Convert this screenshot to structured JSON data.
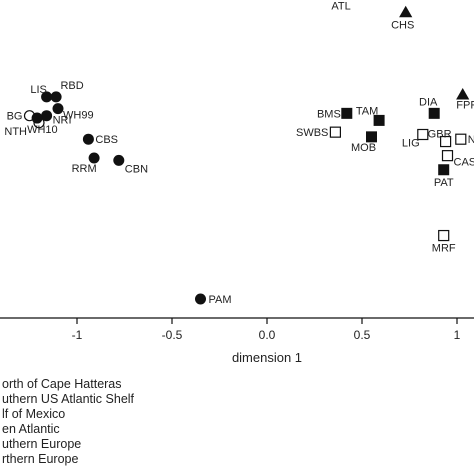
{
  "chart_data": {
    "type": "scatter",
    "xlabel": "dimension 1",
    "ylabel": "",
    "xlim": [
      -1.45,
      1.15
    ],
    "ylim": [
      -0.78,
      0.38
    ],
    "x_ticks": [
      -1,
      -0.5,
      0.0,
      0.5,
      1
    ],
    "x_tick_labels": [
      "-1",
      "-0.5",
      "0.0",
      "0.5",
      "1"
    ],
    "grid": false,
    "legend_position": "bottom-left",
    "legend": [
      {
        "symbol": "triangle",
        "label": "orth of Cape Hatteras"
      },
      {
        "symbol": "square-filled",
        "label": "uthern US Atlantic Shelf"
      },
      {
        "symbol": "square-open",
        "label": "lf of Mexico"
      },
      {
        "symbol": "diamond",
        "label": "en Atlantic"
      },
      {
        "symbol": "circle-open",
        "label": "uthern Europe"
      },
      {
        "symbol": "circle-filled",
        "label": "rthern Europe"
      }
    ],
    "points": [
      {
        "label": "ATL",
        "x": 0.39,
        "y": 0.35,
        "marker": "diamond"
      },
      {
        "label": "CHS",
        "x": 0.73,
        "y": 0.31,
        "marker": "triangle"
      },
      {
        "label": "FPF",
        "x": 1.03,
        "y": 0.135,
        "marker": "triangle"
      },
      {
        "label": "BMS",
        "x": 0.42,
        "y": 0.095,
        "marker": "square-filled"
      },
      {
        "label": "TAM",
        "x": 0.59,
        "y": 0.08,
        "marker": "square-filled"
      },
      {
        "label": "MOB",
        "x": 0.55,
        "y": 0.045,
        "marker": "square-filled"
      },
      {
        "label": "DIA",
        "x": 0.88,
        "y": 0.095,
        "marker": "square-filled"
      },
      {
        "label": "PAT",
        "x": 0.93,
        "y": -0.025,
        "marker": "square-filled"
      },
      {
        "label": "SWBS",
        "x": 0.36,
        "y": 0.055,
        "marker": "square-open"
      },
      {
        "label": "LIG",
        "x": 0.82,
        "y": 0.05,
        "marker": "square-open"
      },
      {
        "label": "GBR",
        "x": 0.94,
        "y": 0.035,
        "marker": "square-open"
      },
      {
        "label": "N",
        "x": 1.02,
        "y": 0.04,
        "marker": "square-open"
      },
      {
        "label": "CAS",
        "x": 0.95,
        "y": 0.005,
        "marker": "square-open"
      },
      {
        "label": "MRF",
        "x": 0.93,
        "y": -0.165,
        "marker": "square-open"
      },
      {
        "label": "LIS",
        "x": -1.16,
        "y": 0.13,
        "marker": "circle-filled"
      },
      {
        "label": "RBD",
        "x": -1.11,
        "y": 0.13,
        "marker": "circle-filled"
      },
      {
        "label": "WH99",
        "x": -1.1,
        "y": 0.105,
        "marker": "circle-filled"
      },
      {
        "label": "BG",
        "x": -1.25,
        "y": 0.09,
        "marker": "circle-open"
      },
      {
        "label": "NTH",
        "x": -1.2,
        "y": 0.075,
        "marker": "circle-open"
      },
      {
        "label": "NRI",
        "x": -1.16,
        "y": 0.09,
        "marker": "circle-filled"
      },
      {
        "label": "WH10",
        "x": -1.21,
        "y": 0.085,
        "marker": "circle-filled"
      },
      {
        "label": "CBS",
        "x": -0.94,
        "y": 0.04,
        "marker": "circle-filled"
      },
      {
        "label": "RRM",
        "x": -0.91,
        "y": 0.0,
        "marker": "circle-filled"
      },
      {
        "label": "CBN",
        "x": -0.78,
        "y": -0.005,
        "marker": "circle-filled"
      },
      {
        "label": "PAM",
        "x": -0.35,
        "y": -0.3,
        "marker": "circle-filled"
      }
    ]
  },
  "colors": {
    "ink": "#111111",
    "background": "#ffffff"
  }
}
